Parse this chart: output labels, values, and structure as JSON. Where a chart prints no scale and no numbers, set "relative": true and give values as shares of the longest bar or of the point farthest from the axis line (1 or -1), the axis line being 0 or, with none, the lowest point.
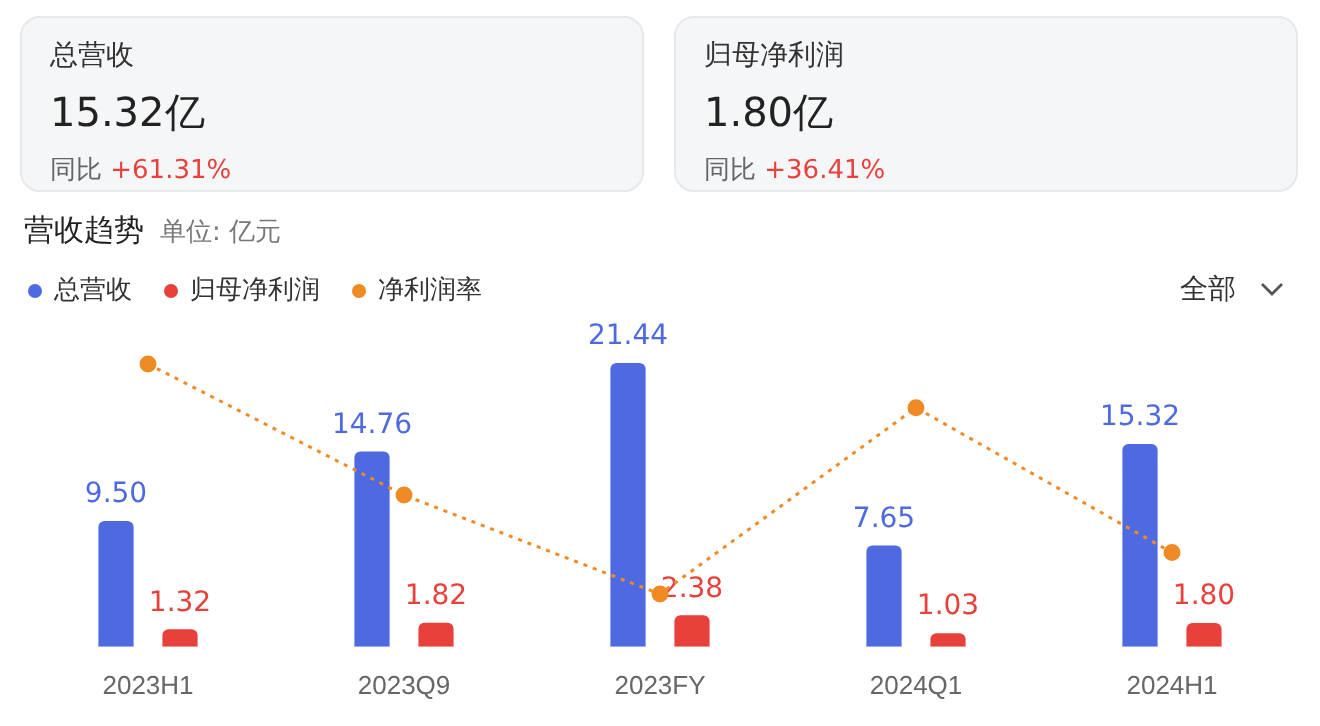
{
  "chart_data": [
    {
      "type": "bar",
      "title": "营收趋势",
      "subtitle": "单位: 亿元",
      "categories": [
        "2023H1",
        "2023Q9",
        "2023FY",
        "2024Q1",
        "2024H1"
      ],
      "series": [
        {
          "name": "总营收",
          "color": "#4f6ae0",
          "values": [
            9.5,
            14.76,
            21.44,
            7.65,
            15.32
          ],
          "value_labels": [
            "9.50",
            "14.76",
            "21.44",
            "7.65",
            "15.32"
          ]
        },
        {
          "name": "归母净利润",
          "color": "#e8413c",
          "values": [
            1.32,
            1.82,
            2.38,
            1.03,
            1.8
          ],
          "value_labels": [
            "1.32",
            "1.82",
            "2.38",
            "1.03",
            "1.80"
          ]
        }
      ],
      "grid": false,
      "legend": "top left",
      "tick_labels": "x",
      "annotations": [
        "总营收",
        "15.32亿",
        "同比 +61.31%",
        "归母净利润",
        "1.80亿",
        "同比 +36.41%",
        "全部"
      ]
    },
    {
      "type": "line",
      "categories": [
        null,
        null,
        null,
        null,
        null
      ],
      "relative": true,
      "tick_labels": false,
      "legend": "top left",
      "grid": false,
      "series": [
        {
          "name": "净利润率",
          "color": "#f08a24",
          "line_style": "dotted",
          "marker": "circle",
          "values": [
            1,
            0.43,
            0,
            0.81,
            0.18
          ]
        }
      ]
    }
  ]
}
